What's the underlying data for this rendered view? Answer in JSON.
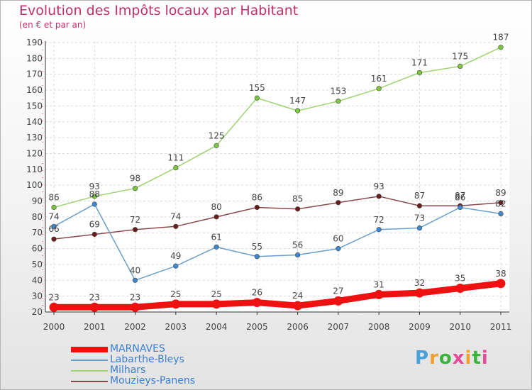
{
  "header": {
    "title": "Evolution des Impôts locaux par Habitant",
    "subtitle": "(en € et par an)"
  },
  "logo": {
    "text": "Proxiti",
    "colors": [
      "#4aa0d8",
      "#f0a030",
      "#3cb43c",
      "#e84a9a",
      "#f0a030",
      "#3cb43c",
      "#e84a9a"
    ]
  },
  "chart_data": {
    "type": "line",
    "title": "Evolution des Impôts locaux par Habitant",
    "subtitle": "(en € et par an)",
    "categories": [
      "2000",
      "2001",
      "2002",
      "2003",
      "2004",
      "2005",
      "2006",
      "2007",
      "2008",
      "2009",
      "2010",
      "2011"
    ],
    "ylim": [
      20,
      190
    ],
    "yticks": [
      20,
      30,
      40,
      50,
      60,
      70,
      80,
      90,
      100,
      110,
      120,
      130,
      140,
      150,
      160,
      170,
      180,
      190
    ],
    "grid": true,
    "legend_position": "bottom-left",
    "series": [
      {
        "name": "MARNAVES",
        "values": [
          23,
          23,
          23,
          25,
          25,
          26,
          24,
          27,
          31,
          32,
          35,
          38
        ],
        "color": "#ee1111",
        "marker": "#ee1111",
        "width": 9,
        "r": 6.5
      },
      {
        "name": "Labarthe-Bleys",
        "values": [
          74,
          88,
          40,
          49,
          61,
          55,
          56,
          60,
          72,
          73,
          86,
          82
        ],
        "color": "#6a9fcc",
        "marker": "#3d88d0",
        "width": 1.5,
        "r": 3.3
      },
      {
        "name": "Milhars",
        "values": [
          86,
          93,
          98,
          111,
          125,
          155,
          147,
          153,
          161,
          171,
          175,
          187
        ],
        "color": "#9ed472",
        "marker": "#7cc83c",
        "width": 1.5,
        "r": 3.3
      },
      {
        "name": "Mouzieys-Panens",
        "values": [
          66,
          69,
          72,
          74,
          80,
          86,
          85,
          89,
          93,
          87,
          87,
          89
        ],
        "color": "#8b4a4a",
        "marker": "#6a1d1d",
        "width": 1.5,
        "r": 3.3
      }
    ]
  }
}
